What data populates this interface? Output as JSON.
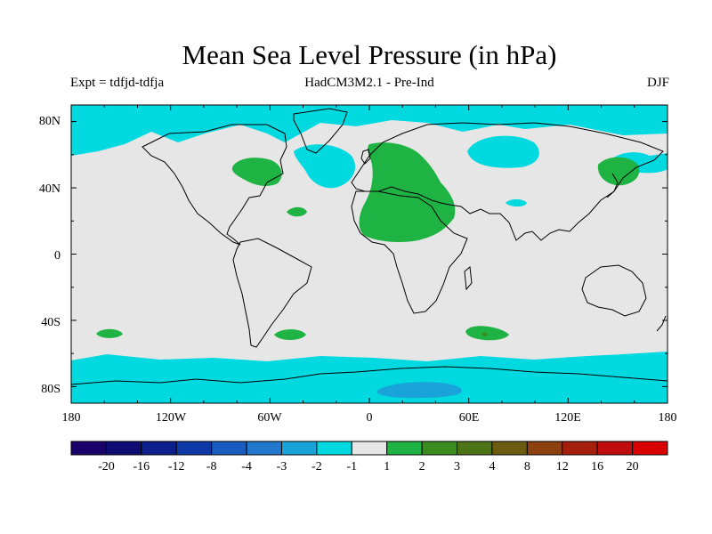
{
  "title": "Mean Sea Level Pressure (in hPa)",
  "subtitle_left": "Expt = tdfjd-tdfja",
  "subtitle_center": "HadCM3M2.1 - Pre-Ind",
  "subtitle_right": "DJF",
  "map": {
    "projection": "cylindrical equidistant",
    "lon_range": [
      -180,
      180
    ],
    "lat_range": [
      -90,
      90
    ],
    "y_tick_labels": [
      "80N",
      "40N",
      "0",
      "40S",
      "80S"
    ],
    "x_tick_labels": [
      "180",
      "120W",
      "60W",
      "0",
      "60E",
      "120E",
      "180"
    ],
    "background_color": "#e6e6e6"
  },
  "colorbar": {
    "labels": [
      "-20",
      "-16",
      "-12",
      "-8",
      "-4",
      "-3",
      "-2",
      "-1",
      "1",
      "2",
      "3",
      "4",
      "8",
      "12",
      "16",
      "20"
    ],
    "colors": [
      "#1a006b",
      "#0d0d73",
      "#0d1f8c",
      "#0d3aa6",
      "#1a5bbf",
      "#2278cc",
      "#1aa3d9",
      "#00d9e0",
      "#e6e6e6",
      "#1fb344",
      "#3a8c1f",
      "#4d7317",
      "#6b5c12",
      "#8c400d",
      "#a61f0d",
      "#bf0d0d",
      "#d90000"
    ]
  }
}
